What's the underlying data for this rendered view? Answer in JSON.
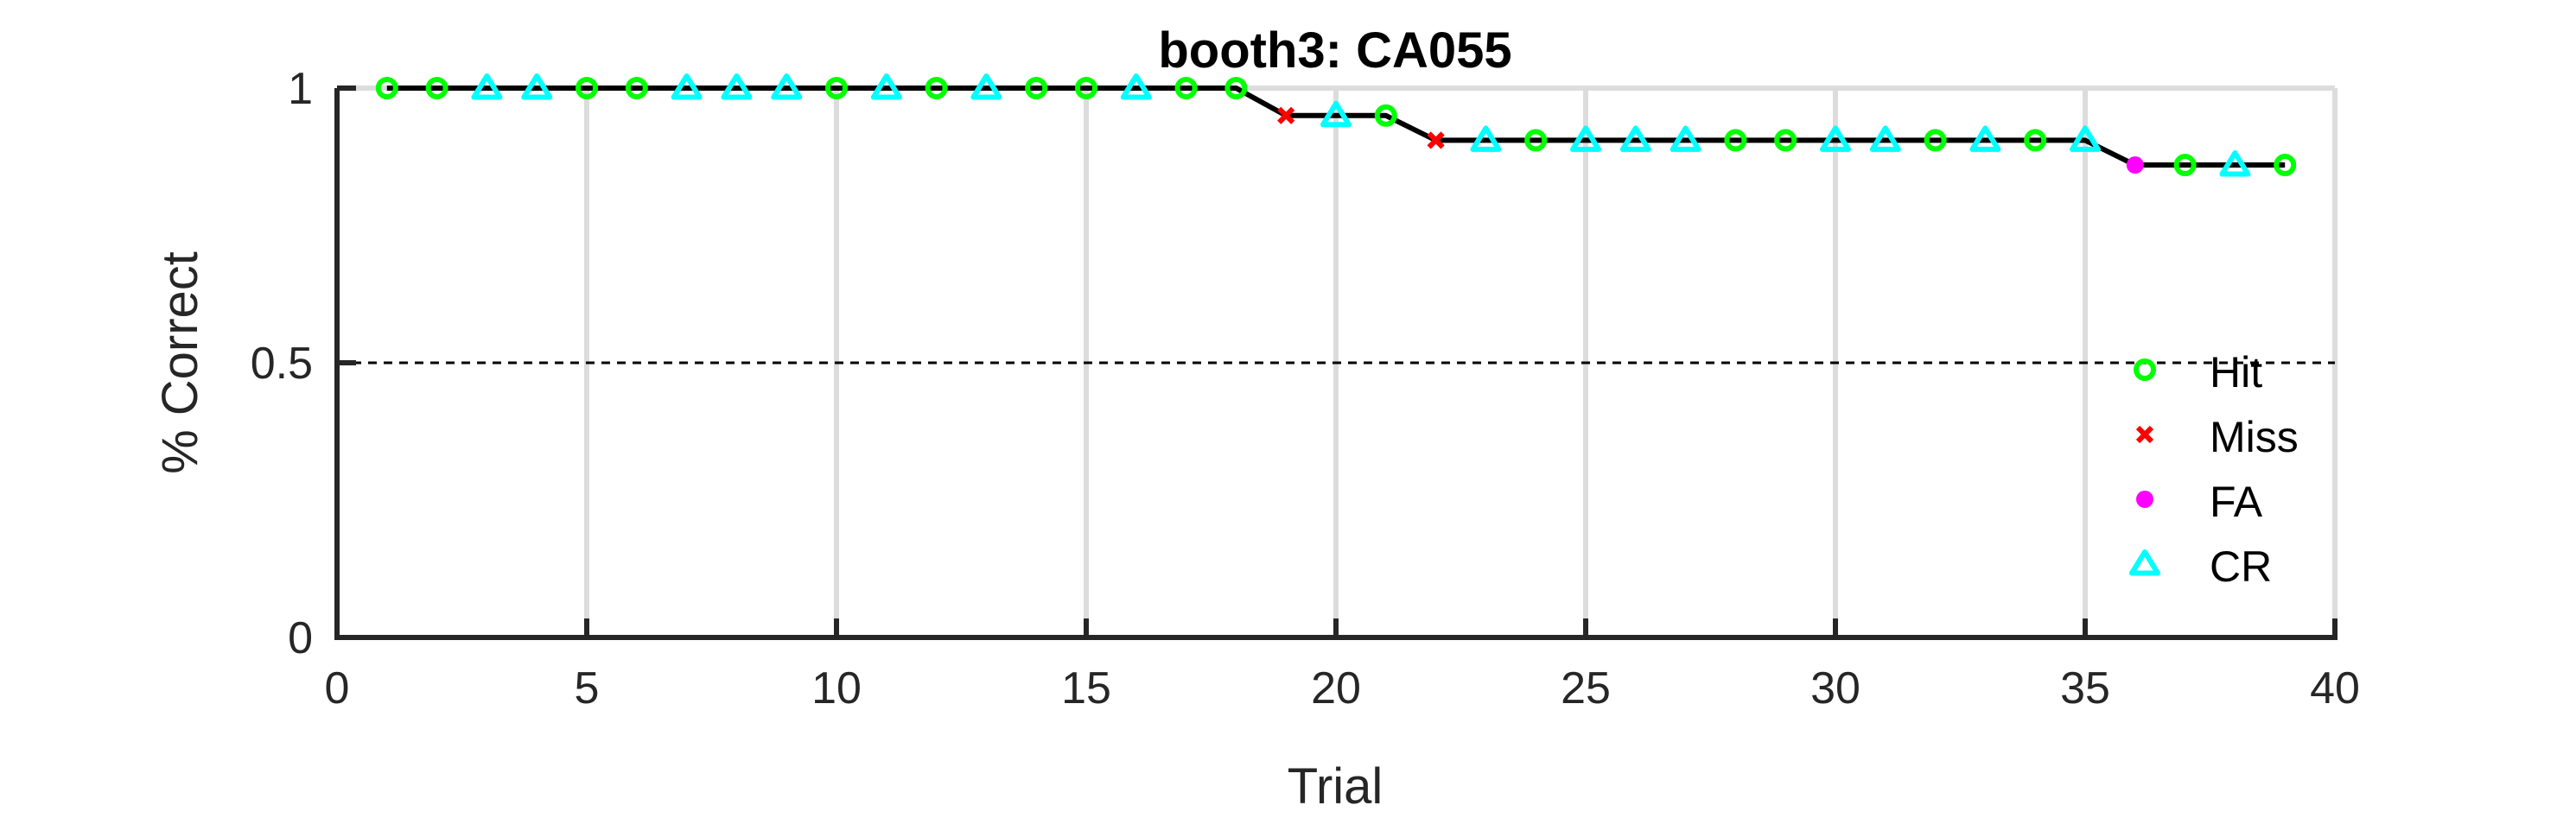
{
  "chart_data": {
    "type": "line",
    "title": "booth3: CA055",
    "xlabel": "Trial",
    "ylabel": "% Correct",
    "xlim": [
      0,
      40
    ],
    "ylim": [
      0,
      1
    ],
    "x_ticks": [
      0,
      5,
      10,
      15,
      20,
      25,
      30,
      35,
      40
    ],
    "y_ticks": [
      0,
      0.5,
      1
    ],
    "y_tick_labels": [
      "0",
      "0.5",
      "1"
    ],
    "grid": "vertical",
    "reference_line": {
      "y": 0.5,
      "style": "dashed"
    },
    "legend_position": "right",
    "line": {
      "x": [
        1,
        2,
        3,
        4,
        5,
        6,
        7,
        8,
        9,
        10,
        11,
        12,
        13,
        14,
        15,
        16,
        17,
        18,
        19,
        20,
        21,
        22,
        23,
        24,
        25,
        26,
        27,
        28,
        29,
        30,
        31,
        32,
        33,
        34,
        35,
        36,
        37,
        38,
        39
      ],
      "y": [
        1,
        1,
        1,
        1,
        1,
        1,
        1,
        1,
        1,
        1,
        1,
        1,
        1,
        1,
        1,
        1,
        1,
        1,
        0.947,
        0.95,
        0.952,
        0.909,
        0.913,
        0.917,
        0.92,
        0.923,
        0.926,
        0.929,
        0.931,
        0.933,
        0.935,
        0.938,
        0.939,
        0.941,
        0.943,
        0.861,
        0.865,
        0.868,
        0.872
      ],
      "y_display": [
        1,
        1,
        1,
        1,
        1,
        1,
        1,
        1,
        1,
        1,
        1,
        1,
        1,
        1,
        1,
        1,
        1,
        1,
        0.95,
        0.95,
        0.95,
        0.905,
        0.905,
        0.905,
        0.905,
        0.905,
        0.905,
        0.905,
        0.905,
        0.905,
        0.905,
        0.905,
        0.905,
        0.905,
        0.905,
        0.86,
        0.86,
        0.86,
        0.86
      ]
    },
    "series": [
      {
        "name": "Hit",
        "marker": "circle",
        "color": "#00ff00",
        "x": [
          1,
          2,
          5,
          6,
          10,
          12,
          14,
          15,
          17,
          18,
          21,
          24,
          28,
          29,
          32,
          34,
          37,
          39
        ]
      },
      {
        "name": "Miss",
        "marker": "x",
        "color": "#ff0000",
        "x": [
          19,
          22
        ]
      },
      {
        "name": "FA",
        "marker": "dot",
        "color": "#ff00ff",
        "x": [
          36
        ]
      },
      {
        "name": "CR",
        "marker": "triangle",
        "color": "#00ffff",
        "x": [
          3,
          4,
          7,
          8,
          9,
          11,
          13,
          16,
          20,
          23,
          25,
          26,
          27,
          30,
          31,
          33,
          35,
          38
        ]
      }
    ]
  }
}
